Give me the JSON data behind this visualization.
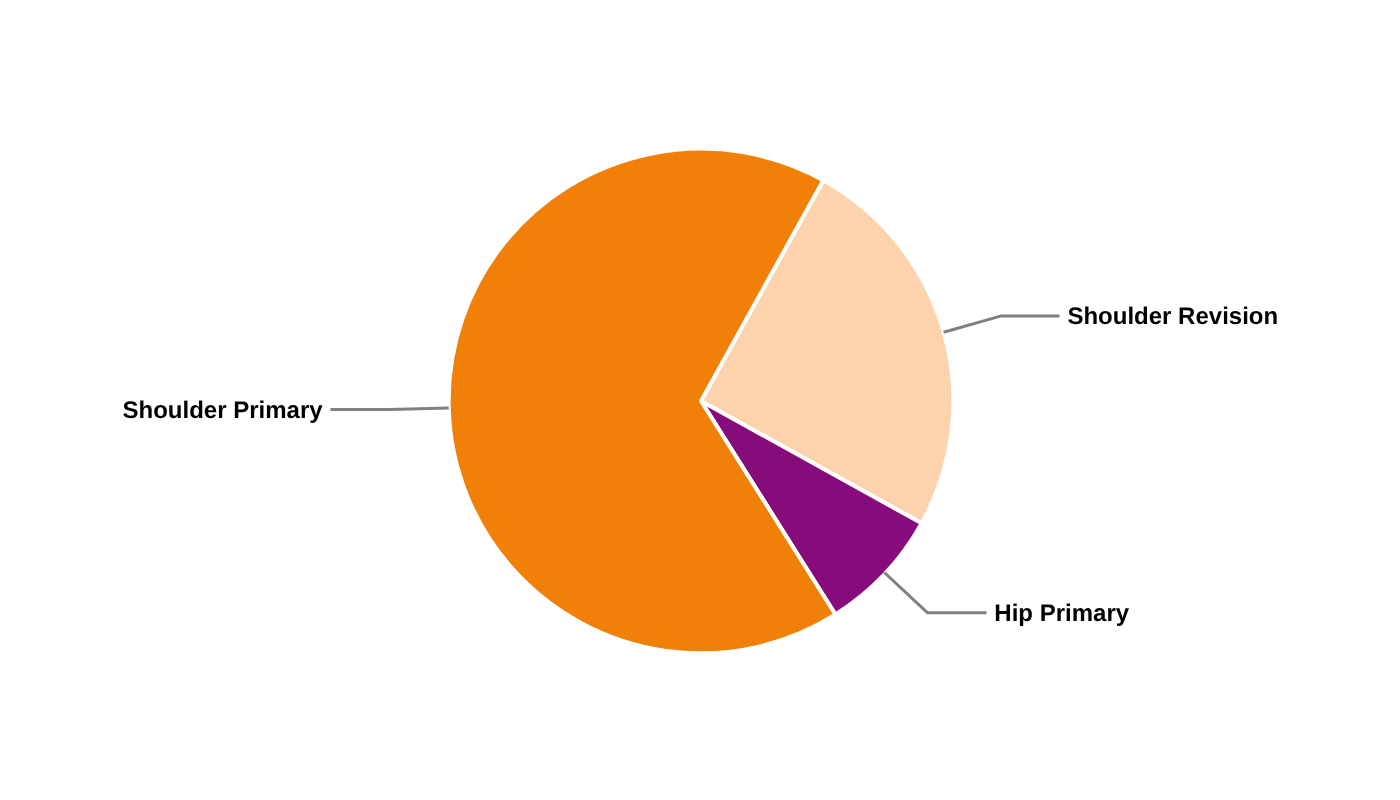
{
  "chart_data": {
    "type": "pie",
    "categories": [
      "Shoulder Revision",
      "Hip Primary",
      "Shoulder Primary"
    ],
    "values": [
      25,
      8,
      67
    ],
    "colors": [
      "#fcd3ac",
      "#860c7c",
      "#f08008"
    ]
  }
}
